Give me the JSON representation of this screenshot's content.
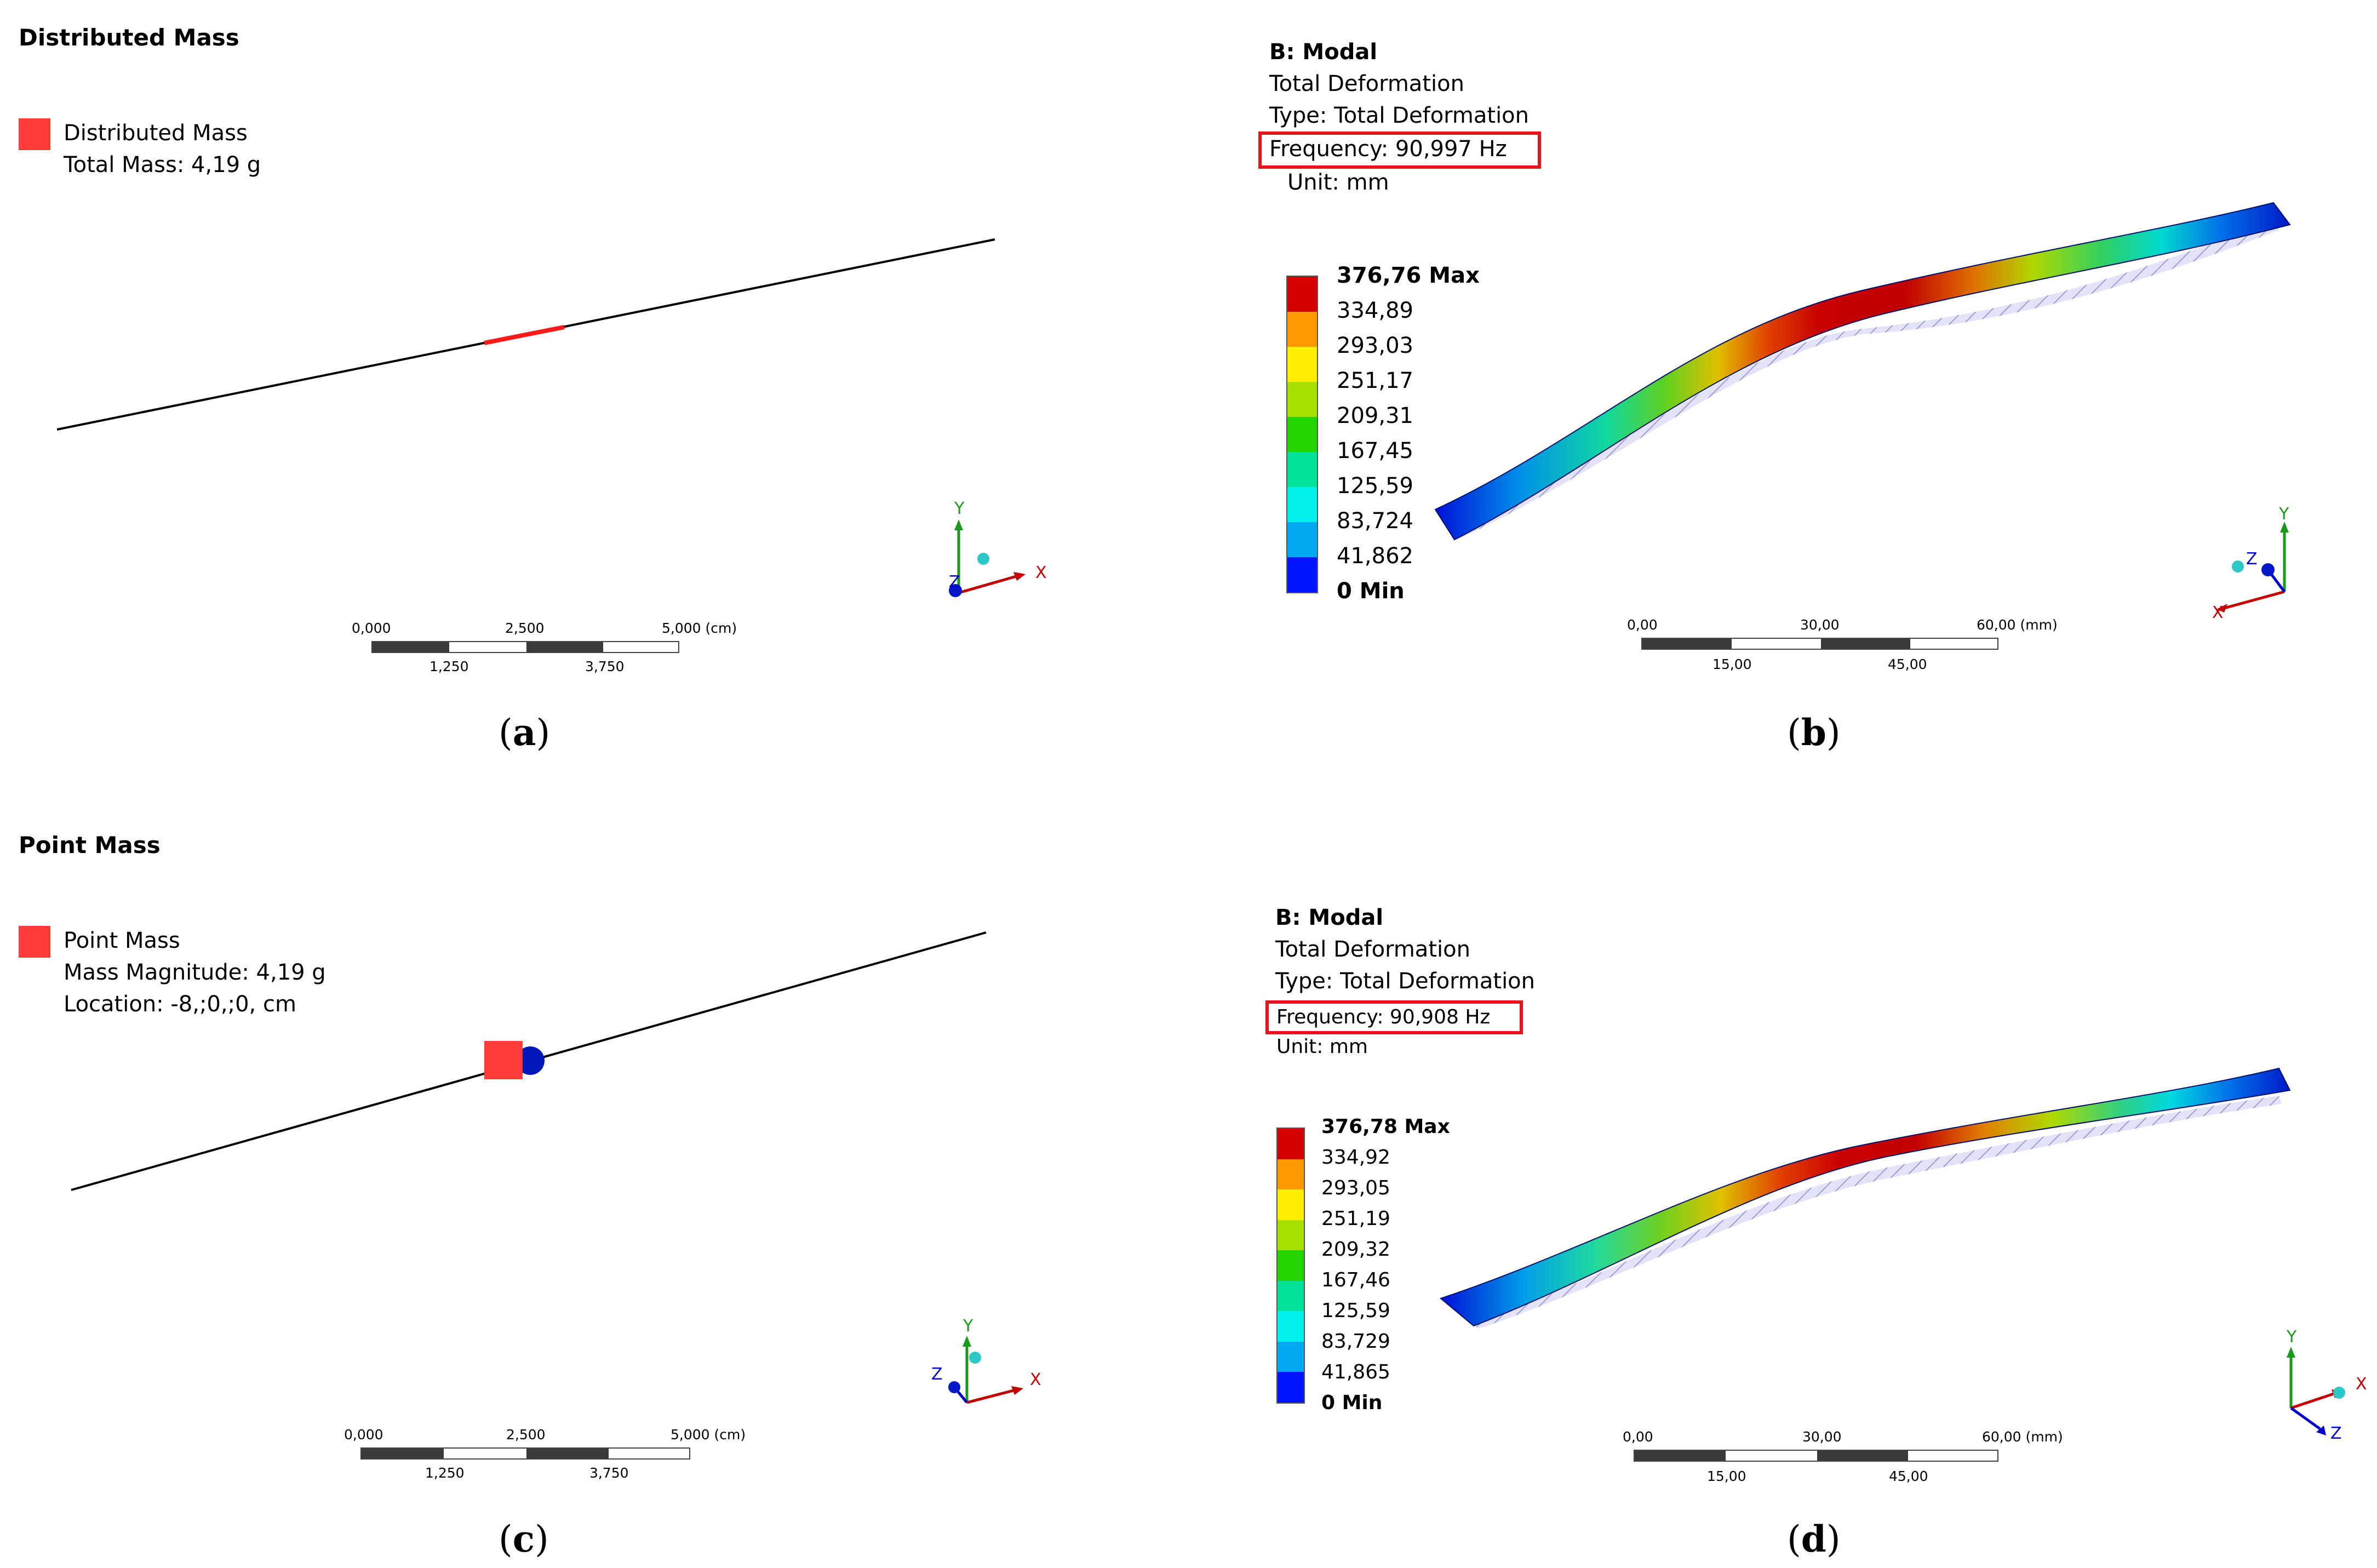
{
  "panels": {
    "a": {
      "title": "Distributed Mass",
      "legend_name": "Distributed Mass",
      "legend_detail": "Total Mass: 4,19 g",
      "scale": {
        "top": [
          "0,000",
          "2,500",
          "5,000 (cm)"
        ],
        "bottom": [
          "1,250",
          "3,750"
        ]
      },
      "axes": {
        "x": "X",
        "y": "Y",
        "z": "Z"
      },
      "caption": "a"
    },
    "b": {
      "title": "B: Modal",
      "line1": "Total Deformation",
      "line2": "Type: Total Deformation",
      "frequency": "Frequency: 90,997 Hz",
      "unit": "Unit: mm",
      "legend": [
        "376,76 Max",
        "334,89",
        "293,03",
        "251,17",
        "209,31",
        "167,45",
        "125,59",
        "83,724",
        "41,862",
        "0 Min"
      ],
      "scale": {
        "top": [
          "0,00",
          "30,00",
          "60,00 (mm)"
        ],
        "bottom": [
          "15,00",
          "45,00"
        ]
      },
      "axes": {
        "x": "X",
        "y": "Y",
        "z": "Z"
      },
      "caption": "b"
    },
    "c": {
      "title": "Point Mass",
      "legend_name": "Point Mass",
      "legend_detail1": "Mass Magnitude: 4,19 g",
      "legend_detail2": "Location: -8,;0,;0, cm",
      "scale": {
        "top": [
          "0,000",
          "2,500",
          "5,000 (cm)"
        ],
        "bottom": [
          "1,250",
          "3,750"
        ]
      },
      "axes": {
        "x": "X",
        "y": "Y",
        "z": "Z"
      },
      "caption": "c"
    },
    "d": {
      "title": "B: Modal",
      "line1": "Total Deformation",
      "line2": "Type: Total Deformation",
      "frequency": "Frequency: 90,908 Hz",
      "unit": "Unit: mm",
      "legend": [
        "376,78 Max",
        "334,92",
        "293,05",
        "251,19",
        "209,32",
        "167,46",
        "125,59",
        "83,729",
        "41,865",
        "0 Min"
      ],
      "scale": {
        "top": [
          "0,00",
          "30,00",
          "60,00 (mm)"
        ],
        "bottom": [
          "15,00",
          "45,00"
        ]
      },
      "axes": {
        "x": "X",
        "y": "Y",
        "z": "Z"
      },
      "caption": "d"
    }
  },
  "colors": {
    "legend_scale": [
      "#d40000",
      "#ff9900",
      "#ffee00",
      "#a6e000",
      "#22d400",
      "#00e09a",
      "#00f0ee",
      "#00a8f0",
      "#0014ff"
    ],
    "mass_marker": "#ff3b3b",
    "freq_box": "#e8131b"
  }
}
